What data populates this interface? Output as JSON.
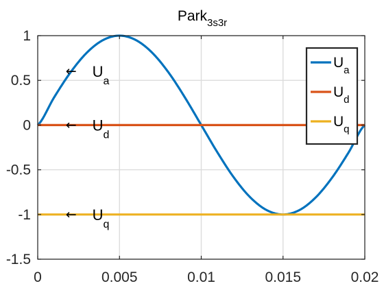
{
  "chart_data": {
    "type": "line",
    "title": "Park",
    "title_subscript": "3s3r",
    "xlim": [
      0,
      0.02
    ],
    "ylim": [
      -1.5,
      1
    ],
    "xticks": [
      0,
      0.005,
      0.01,
      0.015,
      0.02
    ],
    "yticks": [
      1,
      0.5,
      0,
      -0.5,
      -1,
      -1.5
    ],
    "xtick_labels": [
      "0",
      "0.005",
      "0.01",
      "0.015",
      "0.02"
    ],
    "ytick_labels": [
      "1",
      "0.5",
      "0",
      "-0.5",
      "-1",
      "-1.5"
    ],
    "grid": true,
    "box": true,
    "legend_position": "top-right",
    "series": [
      {
        "name": "U",
        "subscript": "a",
        "color": "#0072BD",
        "x": [
          0,
          0.001,
          0.002,
          0.003,
          0.004,
          0.005,
          0.006,
          0.007,
          0.008,
          0.009,
          0.01,
          0.011,
          0.012,
          0.013,
          0.014,
          0.015,
          0.016,
          0.017,
          0.018,
          0.019,
          0.02
        ],
        "y": [
          0,
          0.309,
          0.588,
          0.809,
          0.951,
          1,
          0.951,
          0.809,
          0.588,
          0.309,
          0,
          -0.309,
          -0.588,
          -0.809,
          -0.951,
          -1,
          -0.951,
          -0.809,
          -0.588,
          -0.309,
          0
        ]
      },
      {
        "name": "U",
        "subscript": "d",
        "color": "#D95319",
        "x": [
          0,
          0.02
        ],
        "y": [
          0,
          0
        ]
      },
      {
        "name": "U",
        "subscript": "q",
        "color": "#EDB120",
        "x": [
          0,
          0.02
        ],
        "y": [
          -1,
          -1
        ]
      }
    ],
    "annotations": [
      {
        "arrow": "←",
        "text": "U",
        "subscript": "a",
        "x": 0.0025,
        "y": 0.6
      },
      {
        "arrow": "←",
        "text": "U",
        "subscript": "d",
        "x": 0.0025,
        "y": 0
      },
      {
        "arrow": "←",
        "text": "U",
        "subscript": "q",
        "x": 0.0025,
        "y": -1
      }
    ]
  }
}
